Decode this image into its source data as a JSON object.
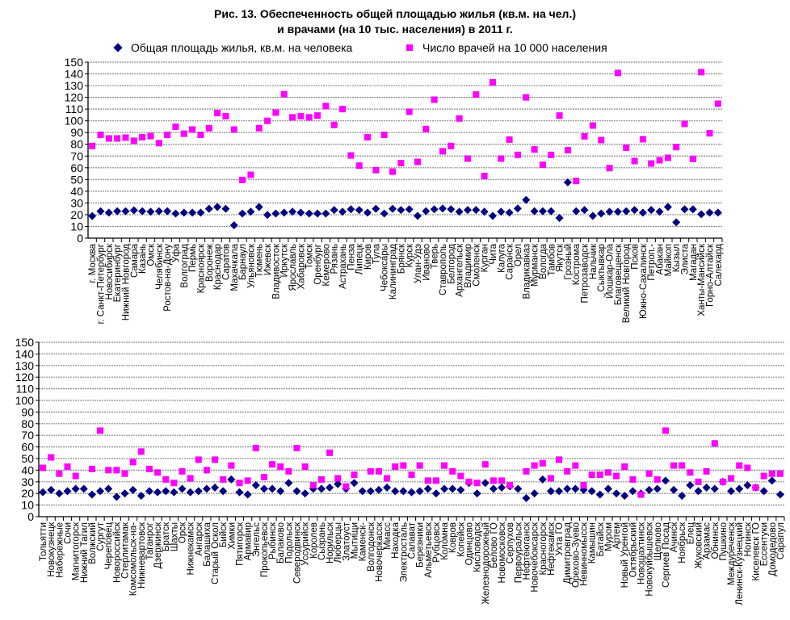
{
  "title_line1": "Рис. 13. Обеспеченность общей площадью жилья (кв.м. на чел.)",
  "title_line2": "и врачами (на 10 тыс. населения) в 2011 г.",
  "legend": [
    {
      "label": "Общая площадь жилья, кв.м. на человека",
      "marker": "diamond",
      "color": "#000080"
    },
    {
      "label": "Число врачей на 10 000 населения",
      "marker": "square",
      "color": "#ff00ff"
    }
  ],
  "chart_data": [
    {
      "type": "scatter",
      "ylim": [
        0,
        150
      ],
      "yticks": [
        "0",
        "10",
        "20",
        "30",
        "40",
        "50",
        "60",
        "70",
        "80",
        "90",
        "100",
        "110",
        "120",
        "130",
        "140",
        "150"
      ],
      "grid": true,
      "categories": [
        "г. Москва",
        "г. Санкт-Петербург",
        "Новосибирск",
        "Екатеринбург",
        "Нижний Новгород",
        "Самара",
        "Казань",
        "Омск",
        "Челябинск",
        "Ростов-на-Дону",
        "Уфа",
        "Волгоград",
        "Пермь",
        "Красноярск",
        "Воронеж",
        "Краснодар",
        "Саратов",
        "Махачкала",
        "Барнаул",
        "Ульяновск",
        "Тюмень",
        "Ижевск",
        "Владивосток",
        "Иркутск",
        "Ярославль",
        "Хабаровск",
        "Томск",
        "Оренбург",
        "Кемерово",
        "Рязань",
        "Астрахань",
        "Пенза",
        "Липецк",
        "Киров",
        "Тула",
        "Чебоксары",
        "Калининград",
        "Брянск",
        "Курск",
        "Улан-Удэ",
        "Иваново",
        "Тверь",
        "Ставрополь",
        "Белгород",
        "Архангельск",
        "Владимир",
        "Смоленск",
        "Курган",
        "Чита",
        "Калуга",
        "Саранск",
        "Орел",
        "Владикавказ",
        "Мурманск",
        "Вологда",
        "Тамбов",
        "Якутск",
        "Грозный",
        "Кострома",
        "Петрозаводск",
        "Нальчик",
        "Сыктывкар",
        "Йошкар-Ола",
        "Благовещенск",
        "Великий Новгород",
        "Псков",
        "Южно-Сахалинск",
        "Петроп.-",
        "Абакан",
        "Майкоп",
        "Кызыл",
        "Элиста",
        "Магадан",
        "Ханты-Мансийск",
        "Горно-Алтайск",
        "Салехард"
      ],
      "series": [
        {
          "name": "Общая площадь жилья, кв.м. на человека",
          "values": [
            18.8,
            23,
            21.8,
            23,
            23,
            23.7,
            23,
            22.5,
            23,
            23,
            21,
            21.8,
            21.8,
            21.8,
            25,
            26.6,
            25,
            11,
            21,
            22.5,
            26.6,
            19.8,
            21,
            21.8,
            22.5,
            21.8,
            21,
            21,
            21,
            24,
            22.5,
            24.6,
            24,
            21.8,
            25,
            21,
            25,
            24,
            24.6,
            19,
            23,
            24.6,
            25.3,
            24.6,
            22.5,
            24,
            24,
            22.5,
            19,
            22.5,
            21.8,
            25.3,
            32.6,
            23,
            23,
            23,
            17.2,
            47.6,
            23,
            24,
            19,
            21,
            22.5,
            22.5,
            23,
            24,
            21.8,
            24,
            22.5,
            26.6,
            13.5,
            24.6,
            24.6,
            20.4,
            21.8,
            21.8
          ]
        },
        {
          "name": "Число врачей на 10 000 населения",
          "values": [
            78.6,
            88,
            85,
            85,
            85.7,
            83,
            86,
            87,
            81,
            88,
            95,
            89,
            92.6,
            88,
            93.7,
            106.6,
            104,
            92.6,
            49.6,
            54,
            93.7,
            100,
            107,
            122.7,
            103,
            104,
            103,
            104.5,
            112.6,
            96.5,
            110,
            70.5,
            61.8,
            86,
            58,
            88,
            56.7,
            64,
            107.7,
            65,
            93,
            118,
            74,
            78.6,
            102,
            67.8,
            122.4,
            53,
            132.8,
            67.8,
            84,
            71,
            120,
            75.6,
            62.5,
            71,
            104.5,
            75,
            48.7,
            86.8,
            96,
            83.6,
            59.7,
            140.8,
            77,
            65.7,
            84.3,
            63.6,
            66.4,
            68.5,
            77.6,
            97.4,
            67.5,
            141.5,
            89.4,
            114.6
          ]
        }
      ]
    },
    {
      "type": "scatter",
      "ylim": [
        0,
        150
      ],
      "yticks": [
        "0",
        "10",
        "20",
        "30",
        "40",
        "50",
        "60",
        "70",
        "80",
        "90",
        "100",
        "110",
        "120",
        "130",
        "140",
        "150"
      ],
      "grid": true,
      "categories": [
        "Тольятти",
        "Новокузнецк",
        "Набережные",
        "Сочи",
        "Магнитогорск",
        "Нижний Тагил",
        "Волжский",
        "Сургут",
        "Череповец",
        "Новороссийск",
        "Стерлитамак",
        "Комсомольск-на-",
        "Нижневартовск",
        "Таганрог",
        "Дзержинск",
        "Братск",
        "Шахты",
        "Орск",
        "Нижнекамск",
        "Ангарск",
        "Балашиха",
        "Старый Оскол",
        "Бийск",
        "Химки",
        "Пятигорск",
        "Армавир",
        "Энгельс",
        "Прокопьевск",
        "Рыбинск",
        "Балаково",
        "Подольск",
        "Северодвинск",
        "Уссурийск",
        "Королев",
        "Сызрань",
        "Норильск",
        "Люберцы",
        "Златоуст",
        "Мытищи",
        "Каменск-",
        "Волгодонск",
        "Новочеркасск",
        "Миасс",
        "Находка",
        "Электросталь",
        "Салават",
        "Березники",
        "Альметьевск",
        "Рубцовск",
        "Коломна",
        "Ковров",
        "Копейск",
        "Одинцово",
        "Кисловодск",
        "Железнодорожный",
        "Белово ГО",
        "Новомосковск",
        "Серпухов",
        "Первоуральск",
        "Нефтеюганск",
        "Новочебоксарск",
        "Красногорск",
        "Нефтекамск",
        "Ухта ГО",
        "Димитровград",
        "Орехово-Зуево",
        "Невинномысск",
        "Камышин",
        "Батайск",
        "Муром",
        "Артем",
        "Новый Уренгой",
        "Октябрьский",
        "Новошахтинск",
        "Новокуйбышевск",
        "Щелково",
        "Сергиев Посад",
        "Ачинск",
        "Ноябрьск",
        "Елец",
        "Жуковский",
        "Арзамас",
        "Обнинск",
        "Пушкино",
        "Междуреченск",
        "Ленинск-Кузнецкий",
        "Ногинск",
        "Киселевск ГО",
        "Ессентуки",
        "Домодедово",
        "Сарапул"
      ],
      "series": [
        {
          "name": "Общая площадь жилья, кв.м. на человека",
          "values": [
            21,
            23,
            20,
            22,
            24,
            24,
            19,
            22,
            24,
            17,
            20,
            23,
            18,
            22,
            21,
            22,
            21,
            24,
            21,
            22,
            24,
            25,
            22,
            32,
            21,
            19,
            27,
            24,
            24,
            22,
            29,
            22,
            20,
            24,
            24,
            25,
            28,
            24,
            29,
            22,
            22,
            23,
            25,
            22,
            22,
            21,
            22,
            24,
            20,
            24,
            24,
            23,
            29,
            20,
            29,
            24,
            25,
            26,
            24,
            16,
            20,
            32,
            22,
            22,
            24,
            24,
            23,
            22,
            19,
            24,
            20,
            18,
            22,
            20,
            23,
            24,
            31,
            23,
            18,
            27,
            22,
            25,
            24,
            30,
            22,
            24,
            27,
            25,
            22,
            31,
            19
          ]
        },
        {
          "name": "Число врачей на 10 000 населения",
          "values": [
            42,
            51,
            37,
            43,
            35,
            null,
            41,
            74,
            40,
            40,
            37,
            47,
            56,
            41,
            38,
            32,
            29,
            39,
            33,
            49,
            40,
            49,
            32,
            44,
            29,
            31,
            59,
            34,
            45,
            43,
            39,
            59,
            43,
            27,
            32,
            55,
            33,
            26,
            36,
            null,
            39,
            39,
            33,
            43,
            44,
            36,
            44,
            31,
            31,
            44,
            39,
            35,
            30,
            29,
            45,
            31,
            31,
            27,
            null,
            39,
            44,
            46,
            33,
            49,
            39,
            44,
            27,
            36,
            36,
            38,
            35,
            43,
            32,
            19,
            37,
            32,
            74,
            44,
            44,
            38,
            30,
            39,
            63,
            30,
            33,
            44,
            42,
            25,
            35,
            37,
            37
          ]
        }
      ]
    }
  ]
}
